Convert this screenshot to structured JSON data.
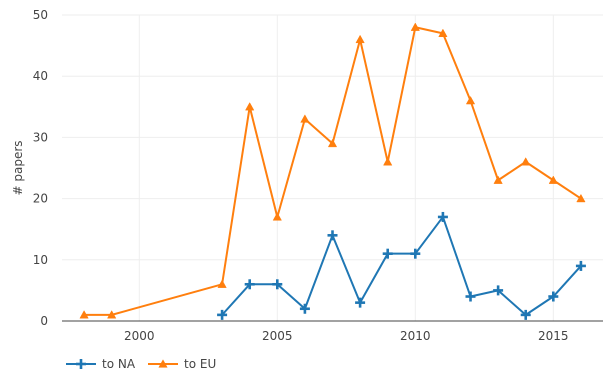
{
  "chart_data": {
    "type": "line",
    "title": "",
    "xlabel": "",
    "ylabel": "# papers",
    "xlim": [
      1997.2,
      2016.8
    ],
    "ylim": [
      0,
      50
    ],
    "x_ticks": [
      2000,
      2005,
      2010,
      2015
    ],
    "y_ticks": [
      0,
      10,
      20,
      30,
      40,
      50
    ],
    "grid": true,
    "legend_position": "bottom-left",
    "series": [
      {
        "name": "to NA",
        "color": "#1f77b4",
        "marker": "cross",
        "x": [
          2003,
          2004,
          2005,
          2006,
          2007,
          2008,
          2009,
          2010,
          2011,
          2012,
          2013,
          2014,
          2015,
          2016
        ],
        "y": [
          1,
          6,
          6,
          2,
          14,
          3,
          11,
          11,
          17,
          4,
          5,
          1,
          4,
          9
        ]
      },
      {
        "name": "to EU",
        "color": "#ff7f0e",
        "marker": "triangle",
        "x": [
          1998,
          1999,
          2003,
          2004,
          2005,
          2006,
          2007,
          2008,
          2009,
          2010,
          2011,
          2012,
          2013,
          2014,
          2015,
          2016
        ],
        "y": [
          1,
          1,
          6,
          35,
          17,
          33,
          29,
          46,
          26,
          48,
          47,
          36,
          23,
          26,
          23,
          20
        ]
      }
    ]
  }
}
